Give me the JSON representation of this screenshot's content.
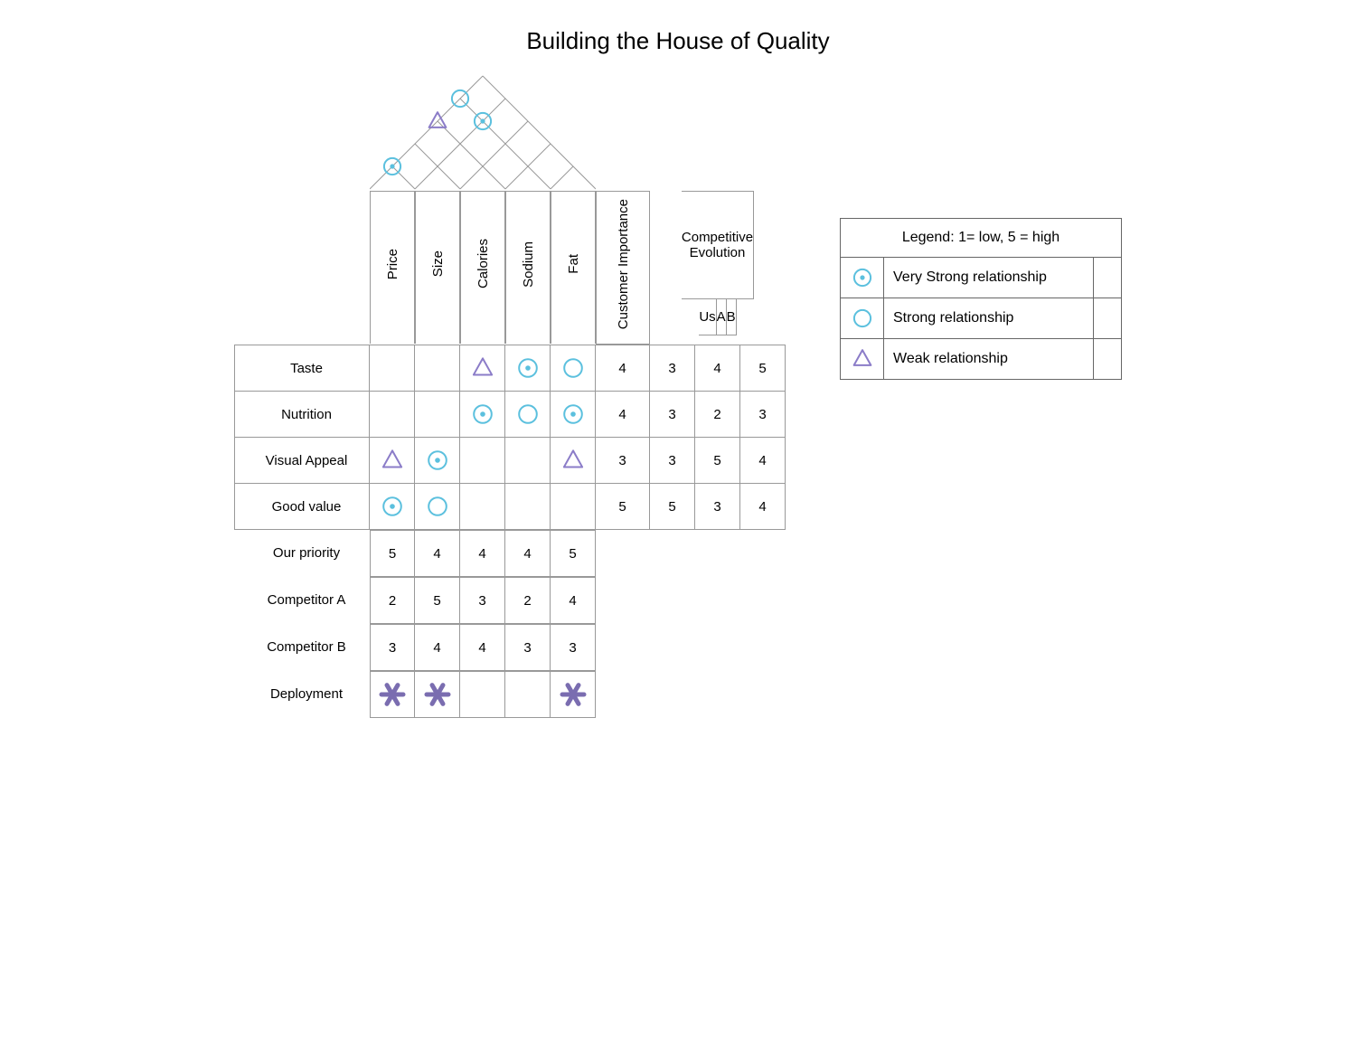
{
  "title": "Building the House of Quality",
  "colors": {
    "border": "#999999",
    "circle_stroke": "#5bc0de",
    "triangle_stroke": "#8b7cc8",
    "asterisk": "#7a6db0",
    "text": "#000000"
  },
  "icons": {
    "very_strong": "circle-dot",
    "strong": "circle",
    "weak": "triangle"
  },
  "tech_attrs": [
    "Price",
    "Size",
    "Calories",
    "Sodium",
    "Fat"
  ],
  "cust_imp_label": "Customer Importance",
  "comp_evo_label": "Competitive Evolution",
  "comp_cols": [
    "Us",
    "A",
    "B"
  ],
  "roof": {
    "cells": [
      {
        "r": 0,
        "c": 0,
        "sym": "strong"
      },
      {
        "r": 1,
        "c": 0,
        "sym": "weak"
      },
      {
        "r": 1,
        "c": 1,
        "sym": "very_strong"
      },
      {
        "r": 3,
        "c": 0,
        "sym": "very_strong"
      }
    ]
  },
  "rows_rel": [
    {
      "label": "Taste",
      "cells": [
        "",
        "",
        "weak",
        "very_strong",
        "strong"
      ],
      "imp": 4,
      "comp": [
        3,
        4,
        5
      ]
    },
    {
      "label": "Nutrition",
      "cells": [
        "",
        "",
        "very_strong",
        "strong",
        "very_strong"
      ],
      "imp": 4,
      "comp": [
        3,
        2,
        3
      ]
    },
    {
      "label": "Visual Appeal",
      "cells": [
        "weak",
        "very_strong",
        "",
        "",
        "weak"
      ],
      "imp": 3,
      "comp": [
        3,
        5,
        4
      ]
    },
    {
      "label": "Good value",
      "cells": [
        "very_strong",
        "strong",
        "",
        "",
        ""
      ],
      "imp": 5,
      "comp": [
        5,
        3,
        4
      ]
    }
  ],
  "rows_priority": [
    {
      "label": "Our priority",
      "vals": [
        5,
        4,
        4,
        4,
        5
      ]
    },
    {
      "label": "Competitor A",
      "vals": [
        2,
        5,
        3,
        2,
        4
      ]
    },
    {
      "label": "Competitor B",
      "vals": [
        3,
        4,
        4,
        3,
        3
      ]
    }
  ],
  "deployment": {
    "label": "Deployment",
    "marks": [
      true,
      true,
      false,
      false,
      true
    ]
  },
  "legend": {
    "title": "Legend: 1= low, 5 = high",
    "rows": [
      {
        "icon": "very_strong",
        "label": "Very Strong relationship"
      },
      {
        "icon": "strong",
        "label": "Strong relationship"
      },
      {
        "icon": "weak",
        "label": "Weak relationship"
      }
    ]
  }
}
